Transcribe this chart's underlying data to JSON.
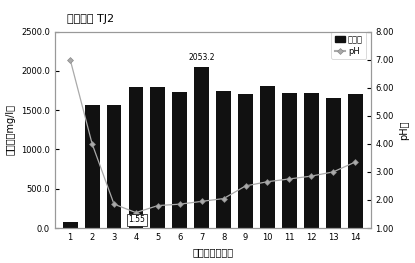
{
  "title": "草酸青霉 TJ2",
  "xlabel": "接种时间（天）",
  "ylabel_left": "解磷量（mg/l）",
  "ylabel_right": "pH值",
  "days": [
    1,
    2,
    3,
    4,
    5,
    6,
    7,
    8,
    9,
    10,
    11,
    12,
    13,
    14
  ],
  "bar_values": [
    80,
    1570,
    1560,
    1790,
    1790,
    1730,
    2053.2,
    1740,
    1700,
    1810,
    1720,
    1720,
    1660,
    1700
  ],
  "ph_values": [
    7.0,
    4.0,
    1.85,
    1.55,
    1.8,
    1.85,
    1.95,
    2.05,
    2.5,
    2.65,
    2.75,
    2.85,
    3.0,
    3.35
  ],
  "bar_color": "#111111",
  "ph_color": "#aaaaaa",
  "ph_marker": "D",
  "ylim_left": [
    0,
    2500
  ],
  "ylim_right": [
    1.0,
    8.0
  ],
  "yticks_left": [
    0.0,
    500.0,
    1000.0,
    1500.0,
    2000.0,
    2500.0
  ],
  "yticks_right": [
    1.0,
    2.0,
    3.0,
    4.0,
    5.0,
    6.0,
    7.0,
    8.0
  ],
  "annotate_bar_day": 7,
  "annotate_bar_val": "2053.2",
  "annotate_ph_day": 4,
  "annotate_ph_val": "1.55",
  "legend_bar_label": "解磷量",
  "legend_ph_label": "pH",
  "background_color": "#ffffff",
  "border_color": "#999999"
}
